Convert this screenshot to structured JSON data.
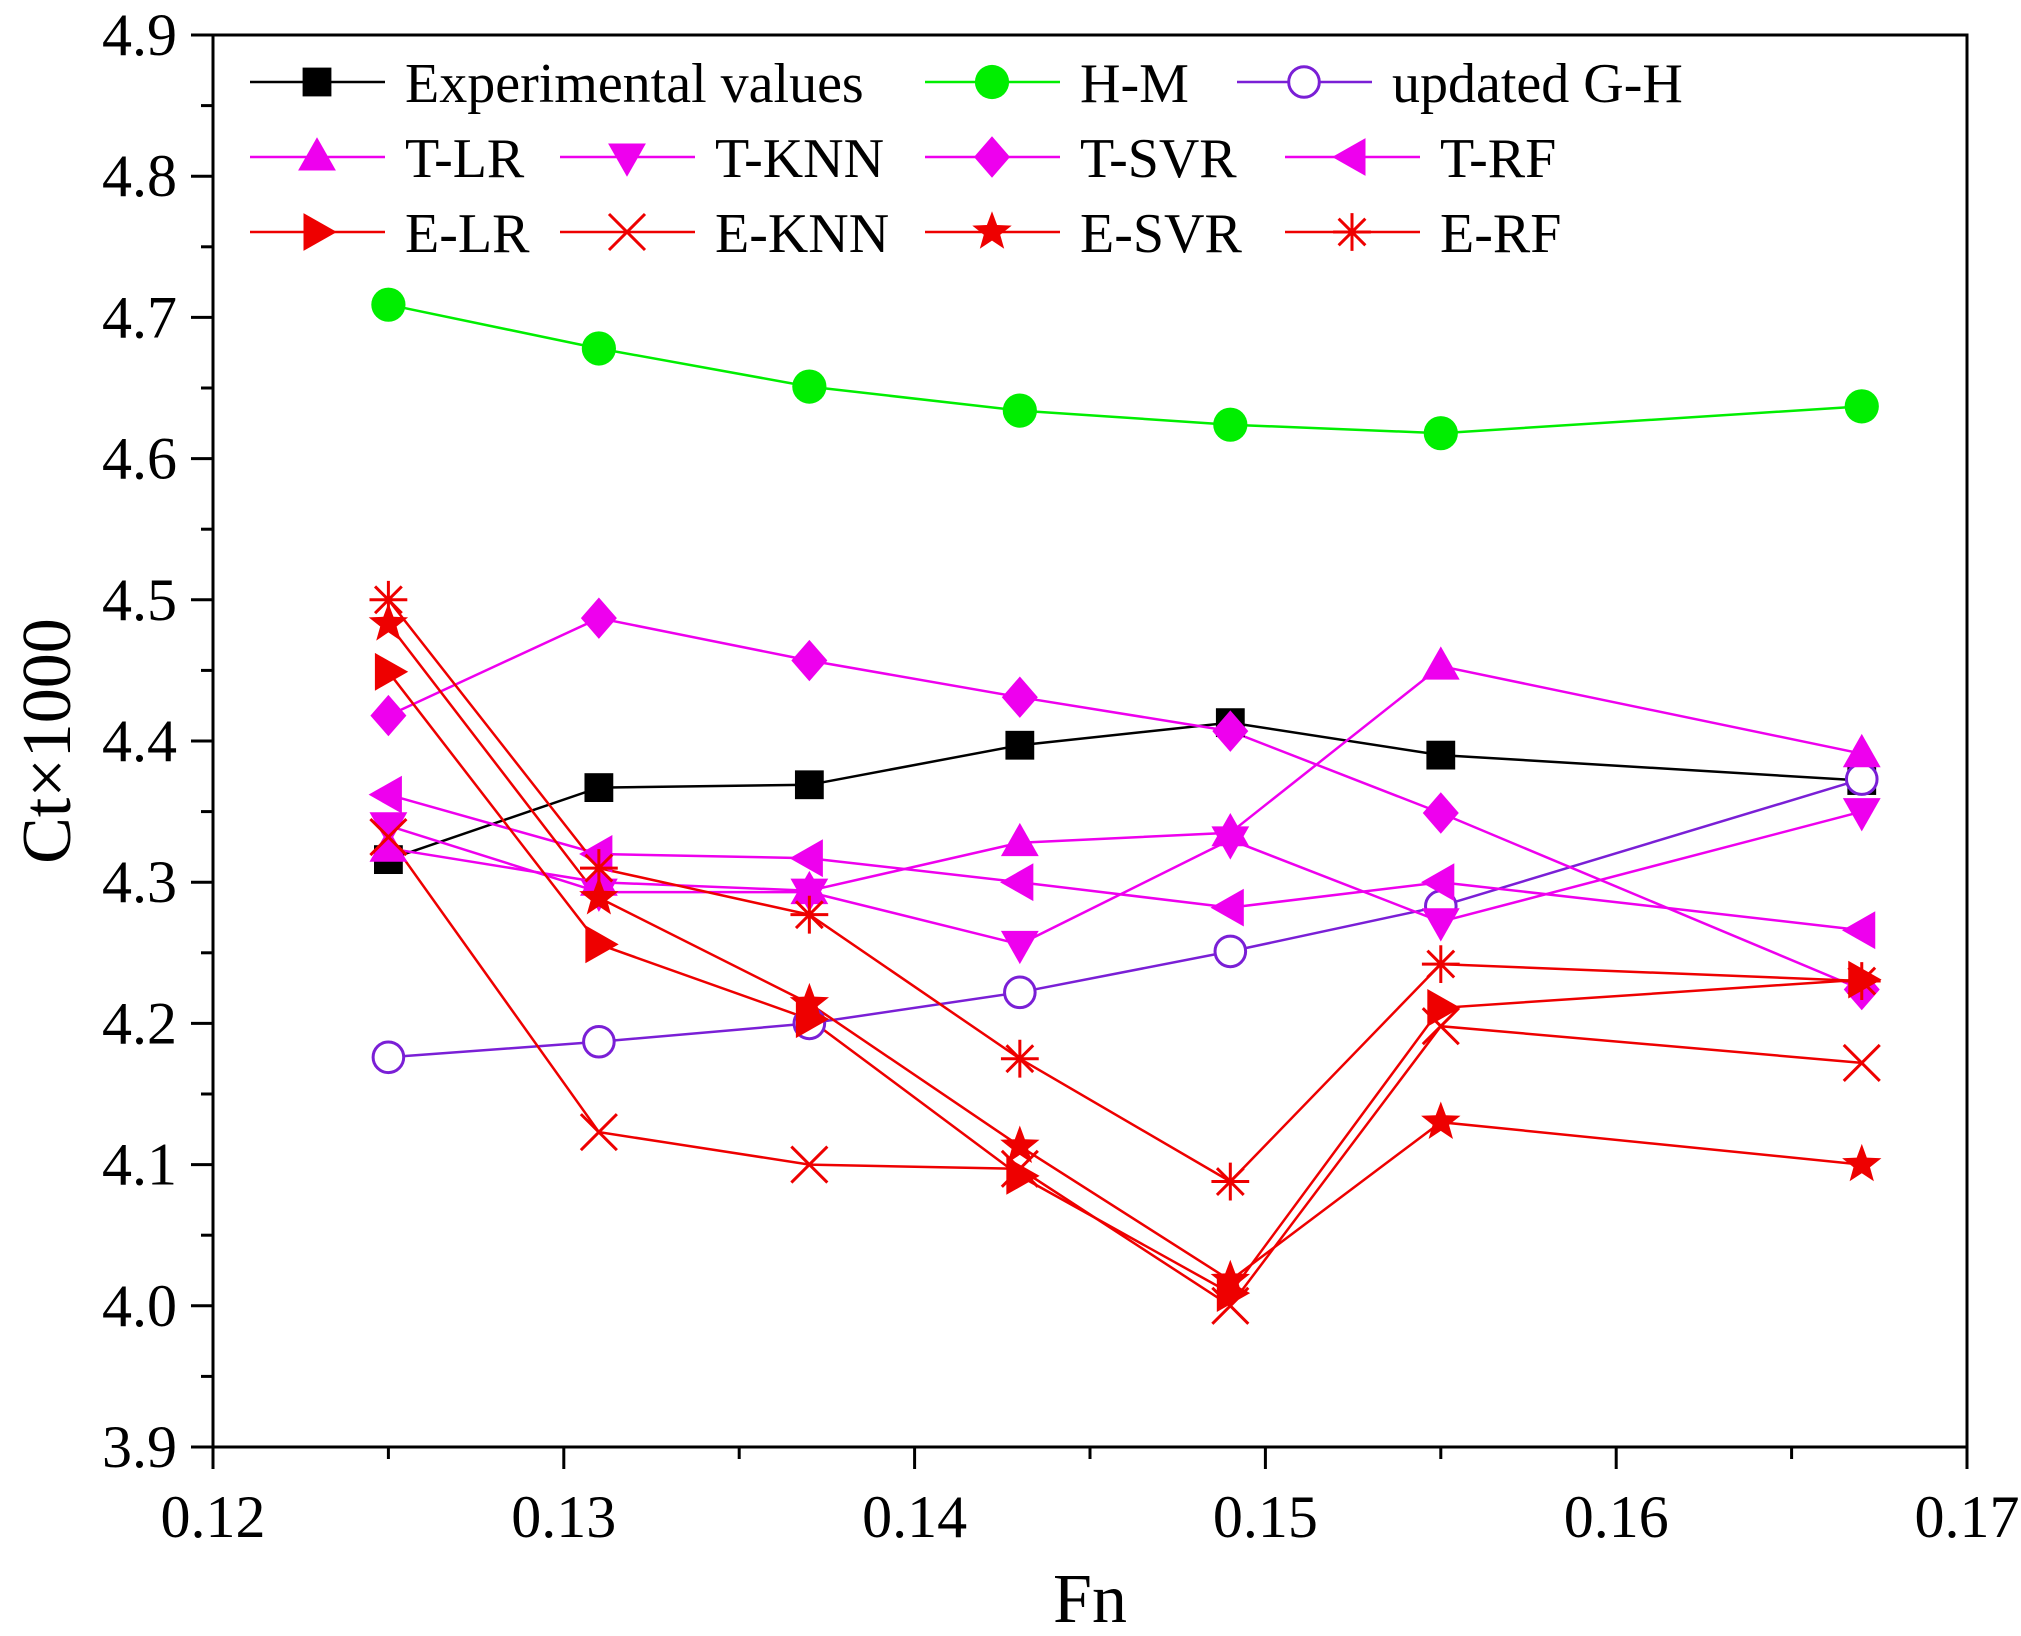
{
  "chart_data": {
    "type": "line",
    "xlabel": "Fn",
    "ylabel": "Ct×1000",
    "xlim": [
      0.12,
      0.17
    ],
    "ylim": [
      3.9,
      4.9
    ],
    "x_ticks": [
      "0.12",
      "0.13",
      "0.14",
      "0.15",
      "0.16",
      "0.17"
    ],
    "y_ticks": [
      "3.9",
      "4.0",
      "4.1",
      "4.2",
      "4.3",
      "4.4",
      "4.5",
      "4.6",
      "4.7",
      "4.8",
      "4.9"
    ],
    "x": [
      0.125,
      0.131,
      0.137,
      0.143,
      0.149,
      0.155,
      0.167
    ],
    "legend_position": "top",
    "series": [
      {
        "name": "Experimental values",
        "color": "#000000",
        "marker": "square-filled",
        "values": [
          4.316,
          4.367,
          4.369,
          4.397,
          4.413,
          4.39,
          4.372
        ]
      },
      {
        "name": "H-M",
        "color": "#00ee00",
        "marker": "circle-filled",
        "values": [
          4.709,
          4.678,
          4.651,
          4.634,
          4.624,
          4.618,
          4.637
        ]
      },
      {
        "name": "updated G-H",
        "color": "#7a1fd6",
        "marker": "circle-open",
        "values": [
          4.176,
          4.187,
          4.2,
          4.222,
          4.251,
          4.283,
          4.373
        ]
      },
      {
        "name": "T-LR",
        "color": "#ee00ee",
        "marker": "triangle-up",
        "values": [
          4.324,
          4.3,
          4.294,
          4.328,
          4.335,
          4.453,
          4.391
        ]
      },
      {
        "name": "T-KNN",
        "color": "#ee00ee",
        "marker": "triangle-down",
        "values": [
          4.34,
          4.293,
          4.293,
          4.256,
          4.33,
          4.272,
          4.35
        ]
      },
      {
        "name": "T-SVR",
        "color": "#ee00ee",
        "marker": "diamond",
        "values": [
          4.418,
          4.487,
          4.457,
          4.431,
          4.407,
          4.349,
          4.224
        ]
      },
      {
        "name": "T-RF",
        "color": "#ee00ee",
        "marker": "triangle-left",
        "values": [
          4.362,
          4.32,
          4.317,
          4.3,
          4.282,
          4.3,
          4.266
        ]
      },
      {
        "name": "E-LR",
        "color": "#ee0000",
        "marker": "triangle-right",
        "values": [
          4.449,
          4.256,
          4.203,
          4.092,
          4.009,
          4.211,
          4.231
        ]
      },
      {
        "name": "E-KNN",
        "color": "#ee0000",
        "marker": "x",
        "values": [
          4.332,
          4.123,
          4.1,
          4.097,
          4.0,
          4.198,
          4.172
        ]
      },
      {
        "name": "E-SVR",
        "color": "#ee0000",
        "marker": "star",
        "values": [
          4.483,
          4.289,
          4.214,
          4.113,
          4.018,
          4.13,
          4.1
        ]
      },
      {
        "name": "E-RF",
        "color": "#ee0000",
        "marker": "asterisk",
        "values": [
          4.5,
          4.31,
          4.277,
          4.175,
          4.088,
          4.242,
          4.23
        ]
      }
    ]
  }
}
